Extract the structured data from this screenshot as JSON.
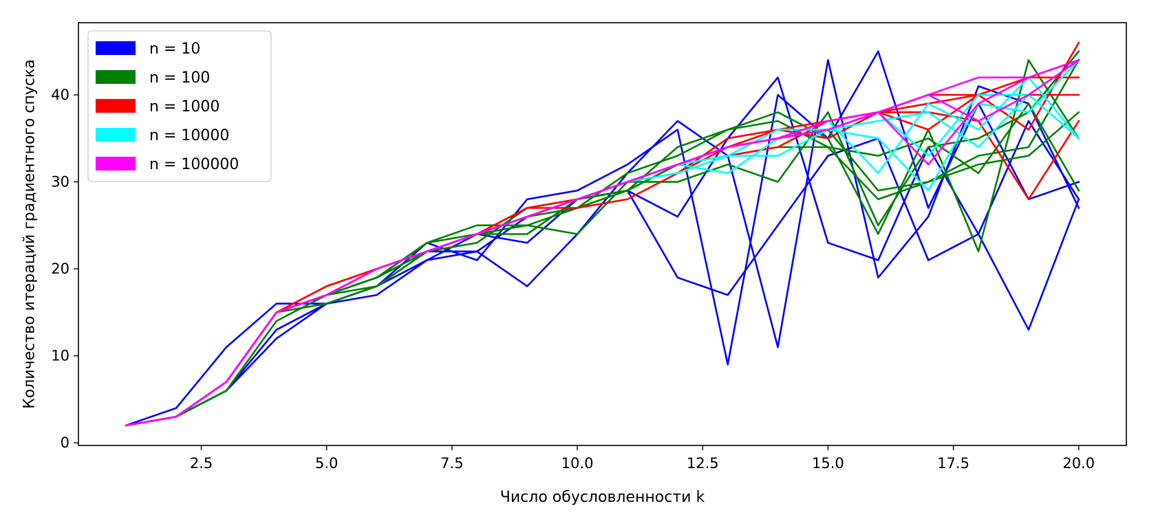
{
  "chart_data": {
    "type": "line",
    "title": "",
    "xlabel": "Число обусловленности k",
    "ylabel": "Количество итераций градиентного спуска",
    "xlim": [
      0.05,
      20.95
    ],
    "ylim": [
      -0.3,
      48.3
    ],
    "x_ticks": [
      "2.5",
      "5.0",
      "7.5",
      "10.0",
      "12.5",
      "15.0",
      "17.5",
      "20.0"
    ],
    "y_ticks": [
      "0",
      "10",
      "20",
      "30",
      "40"
    ],
    "grid": false,
    "legend_position": "upper-left",
    "x": [
      1,
      2,
      3,
      4,
      5,
      6,
      7,
      8,
      9,
      10,
      11,
      12,
      13,
      14,
      15,
      16,
      17,
      18,
      19,
      20
    ],
    "groups": [
      {
        "label": "n = 10",
        "color": "#0000ff",
        "series": [
          [
            2,
            3,
            6,
            12,
            16,
            17,
            21,
            22,
            18,
            24,
            31,
            37,
            33,
            11,
            44,
            19,
            26,
            41,
            39,
            27
          ],
          [
            2,
            4,
            11,
            16,
            16,
            18,
            23,
            21,
            28,
            29,
            32,
            36,
            9,
            40,
            35,
            45,
            27,
            39,
            28,
            30
          ],
          [
            2,
            3,
            6,
            13,
            16,
            18,
            21,
            24,
            23,
            28,
            29,
            26,
            35,
            42,
            23,
            21,
            34,
            24,
            13,
            28
          ],
          [
            2,
            3,
            7,
            15,
            17,
            19,
            22,
            22,
            26,
            28,
            29,
            19,
            17,
            25,
            33,
            35,
            21,
            24,
            37,
            28
          ]
        ]
      },
      {
        "label": "n = 100",
        "color": "#008000",
        "series": [
          [
            2,
            3,
            6,
            14,
            17,
            19,
            23,
            24,
            24,
            28,
            29,
            34,
            36,
            38,
            35,
            24,
            36,
            22,
            44,
            35
          ],
          [
            2,
            3,
            7,
            15,
            16,
            18,
            22,
            24,
            25,
            24,
            30,
            30,
            32,
            30,
            38,
            25,
            34,
            35,
            38,
            45
          ],
          [
            2,
            3,
            7,
            15,
            17,
            19,
            23,
            25,
            25,
            27,
            31,
            33,
            36,
            37,
            34,
            28,
            30,
            33,
            34,
            44
          ],
          [
            2,
            3,
            7,
            15,
            17,
            18,
            22,
            23,
            27,
            28,
            29,
            32,
            33,
            34,
            34,
            33,
            35,
            31,
            39,
            29
          ],
          [
            2,
            3,
            7,
            15,
            17,
            19,
            22,
            24,
            26,
            27,
            29,
            32,
            34,
            35,
            36,
            29,
            30,
            32,
            33,
            38
          ]
        ]
      },
      {
        "label": "n = 1000",
        "color": "#ff0000",
        "series": [
          [
            2,
            3,
            7,
            15,
            18,
            20,
            22,
            24,
            27,
            27,
            28,
            31,
            35,
            36,
            35,
            38,
            38,
            37,
            28,
            37
          ],
          [
            2,
            3,
            7,
            15,
            18,
            20,
            22,
            24,
            26,
            28,
            30,
            31,
            34,
            36,
            37,
            38,
            39,
            40,
            36,
            46
          ],
          [
            2,
            3,
            7,
            15,
            17,
            20,
            22,
            24,
            27,
            28,
            30,
            32,
            34,
            35,
            36,
            38,
            40,
            40,
            42,
            42
          ],
          [
            2,
            3,
            7,
            15,
            17,
            20,
            22,
            24,
            26,
            28,
            30,
            32,
            33,
            34,
            37,
            38,
            36,
            40,
            40,
            40
          ]
        ]
      },
      {
        "label": "n = 10000",
        "color": "#00ffff",
        "series": [
          [
            2,
            3,
            7,
            15,
            17,
            20,
            22,
            24,
            26,
            28,
            30,
            32,
            31,
            35,
            37,
            31,
            39,
            36,
            42,
            35
          ],
          [
            2,
            3,
            7,
            15,
            17,
            20,
            22,
            24,
            26,
            28,
            30,
            31,
            33,
            33,
            36,
            35,
            29,
            39,
            38,
            44
          ],
          [
            2,
            3,
            7,
            15,
            17,
            20,
            22,
            24,
            26,
            28,
            30,
            32,
            33,
            36,
            36,
            38,
            33,
            40,
            40,
            44
          ],
          [
            2,
            3,
            7,
            15,
            17,
            20,
            22,
            24,
            26,
            28,
            30,
            32,
            34,
            35,
            36,
            37,
            38,
            34,
            40,
            35
          ]
        ]
      },
      {
        "label": "n = 100000",
        "color": "#ff00ff",
        "series": [
          [
            2,
            3,
            7,
            15,
            17,
            20,
            22,
            24,
            26,
            28,
            30,
            32,
            34,
            35,
            36,
            38,
            32,
            39,
            42,
            44
          ],
          [
            2,
            3,
            7,
            15,
            17,
            20,
            22,
            24,
            26,
            28,
            30,
            32,
            34,
            35,
            37,
            38,
            40,
            37,
            40,
            44
          ],
          [
            2,
            3,
            7,
            15,
            17,
            20,
            22,
            24,
            26,
            28,
            30,
            32,
            34,
            35,
            37,
            38,
            40,
            42,
            42,
            44
          ]
        ]
      }
    ]
  }
}
